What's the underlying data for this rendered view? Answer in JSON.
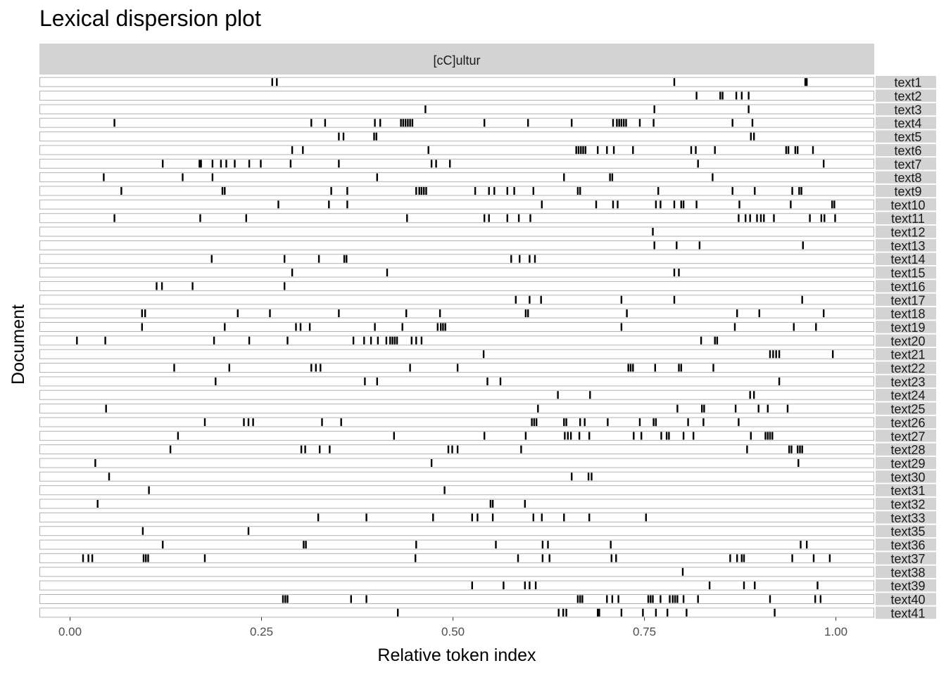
{
  "chart_data": {
    "type": "scatter",
    "title": "Lexical dispersion plot",
    "facet_label": "[cC]ultur",
    "xlabel": "Relative token index",
    "ylabel": "Document",
    "xlim": [
      -0.04,
      1.05
    ],
    "x_ticks": [
      0.0,
      0.25,
      0.5,
      0.75,
      1.0
    ],
    "x_tick_labels": [
      "0.00",
      "0.25",
      "0.50",
      "0.75",
      "1.00"
    ],
    "grid": false,
    "colors": {
      "strip": "#d3d3d3",
      "panel_border": "#b3b3b3",
      "mark": "#000000"
    },
    "documents": [
      {
        "name": "text1",
        "x": [
          0.264,
          0.27,
          0.789,
          0.96,
          0.962
        ]
      },
      {
        "name": "text2",
        "x": [
          0.818,
          0.849,
          0.852,
          0.87,
          0.877,
          0.886
        ]
      },
      {
        "name": "text3",
        "x": [
          0.464,
          0.763,
          0.886
        ]
      },
      {
        "name": "text4",
        "x": [
          0.058,
          0.315,
          0.333,
          0.398,
          0.405,
          0.432,
          0.435,
          0.438,
          0.441,
          0.444,
          0.447,
          0.541,
          0.598,
          0.655,
          0.709,
          0.714,
          0.717,
          0.72,
          0.723,
          0.726,
          0.744,
          0.762,
          0.865,
          0.891
        ]
      },
      {
        "name": "text5",
        "x": [
          0.351,
          0.357,
          0.397,
          0.4,
          0.889,
          0.893
        ]
      },
      {
        "name": "text6",
        "x": [
          0.29,
          0.304,
          0.468,
          0.661,
          0.664,
          0.667,
          0.67,
          0.673,
          0.689,
          0.701,
          0.71,
          0.735,
          0.811,
          0.817,
          0.842,
          0.935,
          0.938,
          0.947,
          0.95,
          0.97
        ]
      },
      {
        "name": "text7",
        "x": [
          0.121,
          0.169,
          0.171,
          0.186,
          0.197,
          0.204,
          0.215,
          0.234,
          0.249,
          0.288,
          0.351,
          0.472,
          0.478,
          0.496,
          0.82,
          0.984
        ]
      },
      {
        "name": "text8",
        "x": [
          0.044,
          0.147,
          0.186,
          0.401,
          0.645,
          0.705,
          0.708,
          0.839
        ]
      },
      {
        "name": "text9",
        "x": [
          0.067,
          0.199,
          0.202,
          0.341,
          0.362,
          0.452,
          0.456,
          0.459,
          0.462,
          0.465,
          0.529,
          0.547,
          0.554,
          0.571,
          0.58,
          0.605,
          0.663,
          0.666,
          0.768,
          0.865,
          0.894,
          0.943,
          0.952,
          0.955
        ]
      },
      {
        "name": "text10",
        "x": [
          0.272,
          0.338,
          0.362,
          0.616,
          0.687,
          0.709,
          0.715,
          0.765,
          0.771,
          0.789,
          0.798,
          0.801,
          0.818,
          0.874,
          0.941,
          0.995,
          0.998
        ]
      },
      {
        "name": "text11",
        "x": [
          0.058,
          0.17,
          0.23,
          0.44,
          0.541,
          0.547,
          0.571,
          0.586,
          0.601,
          0.873,
          0.882,
          0.888,
          0.897,
          0.902,
          0.906,
          0.919,
          0.966,
          0.981,
          0.985,
          0.999
        ]
      },
      {
        "name": "text12",
        "x": [
          0.761
        ]
      },
      {
        "name": "text13",
        "x": [
          0.763,
          0.792,
          0.822,
          0.957
        ]
      },
      {
        "name": "text14",
        "x": [
          0.185,
          0.28,
          0.325,
          0.358,
          0.361,
          0.576,
          0.587,
          0.6,
          0.607
        ]
      },
      {
        "name": "text15",
        "x": [
          0.29,
          0.414,
          0.789,
          0.795
        ]
      },
      {
        "name": "text16",
        "x": [
          0.113,
          0.12,
          0.16,
          0.28
        ]
      },
      {
        "name": "text17",
        "x": [
          0.582,
          0.6,
          0.615,
          0.72,
          0.789,
          0.956
        ]
      },
      {
        "name": "text18",
        "x": [
          0.094,
          0.098,
          0.219,
          0.261,
          0.351,
          0.439,
          0.483,
          0.595,
          0.598,
          0.727,
          0.871,
          0.9,
          0.984
        ]
      },
      {
        "name": "text19",
        "x": [
          0.094,
          0.202,
          0.295,
          0.301,
          0.313,
          0.398,
          0.434,
          0.48,
          0.484,
          0.487,
          0.49,
          0.72,
          0.868,
          0.945,
          0.974
        ]
      },
      {
        "name": "text20",
        "x": [
          0.009,
          0.046,
          0.188,
          0.234,
          0.284,
          0.37,
          0.384,
          0.393,
          0.402,
          0.413,
          0.418,
          0.421,
          0.424,
          0.427,
          0.446,
          0.452,
          0.459,
          0.824,
          0.842,
          0.845
        ]
      },
      {
        "name": "text21",
        "x": [
          0.54,
          0.914,
          0.918,
          0.922,
          0.926,
          0.996
        ]
      },
      {
        "name": "text22",
        "x": [
          0.136,
          0.208,
          0.315,
          0.321,
          0.327,
          0.444,
          0.506,
          0.729,
          0.732,
          0.735,
          0.764,
          0.795,
          0.798,
          0.84
        ]
      },
      {
        "name": "text23",
        "x": [
          0.19,
          0.385,
          0.401,
          0.545,
          0.562,
          0.926
        ]
      },
      {
        "name": "text24",
        "x": [
          0.637,
          0.679,
          0.888,
          0.893
        ]
      },
      {
        "name": "text25",
        "x": [
          0.047,
          0.611,
          0.793,
          0.825,
          0.828,
          0.869,
          0.899,
          0.911,
          0.937
        ]
      },
      {
        "name": "text26",
        "x": [
          0.176,
          0.227,
          0.233,
          0.239,
          0.329,
          0.354,
          0.603,
          0.606,
          0.609,
          0.645,
          0.648,
          0.666,
          0.672,
          0.702,
          0.744,
          0.762,
          0.765,
          0.807,
          0.827,
          0.873
        ]
      },
      {
        "name": "text27",
        "x": [
          0.141,
          0.423,
          0.541,
          0.595,
          0.646,
          0.65,
          0.654,
          0.665,
          0.678,
          0.736,
          0.746,
          0.772,
          0.779,
          0.782,
          0.801,
          0.814,
          0.889,
          0.908,
          0.911,
          0.914,
          0.917
        ]
      },
      {
        "name": "text28",
        "x": [
          0.131,
          0.302,
          0.307,
          0.326,
          0.339,
          0.494,
          0.499,
          0.506,
          0.589,
          0.884,
          0.939,
          0.942,
          0.95,
          0.953,
          0.956
        ]
      },
      {
        "name": "text29",
        "x": [
          0.033,
          0.472,
          0.951
        ]
      },
      {
        "name": "text30",
        "x": [
          0.051,
          0.655,
          0.677,
          0.681
        ]
      },
      {
        "name": "text31",
        "x": [
          0.103,
          0.489
        ]
      },
      {
        "name": "text32",
        "x": [
          0.036,
          0.549,
          0.552,
          0.594
        ]
      },
      {
        "name": "text33",
        "x": [
          0.324,
          0.387,
          0.474,
          0.525,
          0.532,
          0.552,
          0.605,
          0.616,
          0.645,
          0.678,
          0.752
        ]
      },
      {
        "name": "text35",
        "x": [
          0.095,
          0.233
        ]
      },
      {
        "name": "text36",
        "x": [
          0.121,
          0.305,
          0.308,
          0.452,
          0.556,
          0.617,
          0.624,
          0.706,
          0.954,
          0.962
        ]
      },
      {
        "name": "text37",
        "x": [
          0.017,
          0.024,
          0.029,
          0.096,
          0.099,
          0.102,
          0.176,
          0.451,
          0.585,
          0.617,
          0.626,
          0.707,
          0.713,
          0.862,
          0.871,
          0.877,
          0.88,
          0.943,
          0.971,
          0.992
        ]
      },
      {
        "name": "text38",
        "x": [
          0.8
        ]
      },
      {
        "name": "text39",
        "x": [
          0.525,
          0.566,
          0.594,
          0.6,
          0.608,
          0.835,
          0.88,
          0.894,
          0.976
        ]
      },
      {
        "name": "text40",
        "x": [
          0.278,
          0.281,
          0.284,
          0.367,
          0.387,
          0.663,
          0.666,
          0.669,
          0.701,
          0.708,
          0.716,
          0.755,
          0.758,
          0.761,
          0.771,
          0.783,
          0.787,
          0.79,
          0.793,
          0.801,
          0.82,
          0.914,
          0.973,
          0.98
        ]
      },
      {
        "name": "text41",
        "x": [
          0.428,
          0.638,
          0.644,
          0.648,
          0.689,
          0.691,
          0.72,
          0.748,
          0.765,
          0.78,
          0.805,
          0.92
        ]
      }
    ]
  }
}
